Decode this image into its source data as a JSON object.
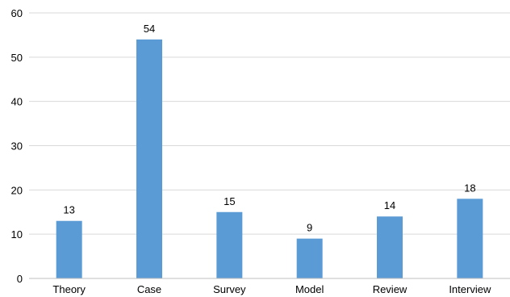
{
  "chart_data": {
    "type": "bar",
    "categories": [
      "Theory",
      "Case",
      "Survey",
      "Model",
      "Review",
      "Interview"
    ],
    "values": [
      13,
      54,
      15,
      9,
      14,
      18
    ],
    "data_labels": [
      "13",
      "54",
      "15",
      "9",
      "14",
      "18"
    ],
    "title": "",
    "xlabel": "",
    "ylabel": "",
    "ylim": [
      0,
      60
    ],
    "yticks": [
      0,
      10,
      20,
      30,
      40,
      50,
      60
    ],
    "grid": true,
    "legend": "none",
    "bar_color": "#5b9bd5",
    "gridline_color": "#d9d9d9"
  }
}
